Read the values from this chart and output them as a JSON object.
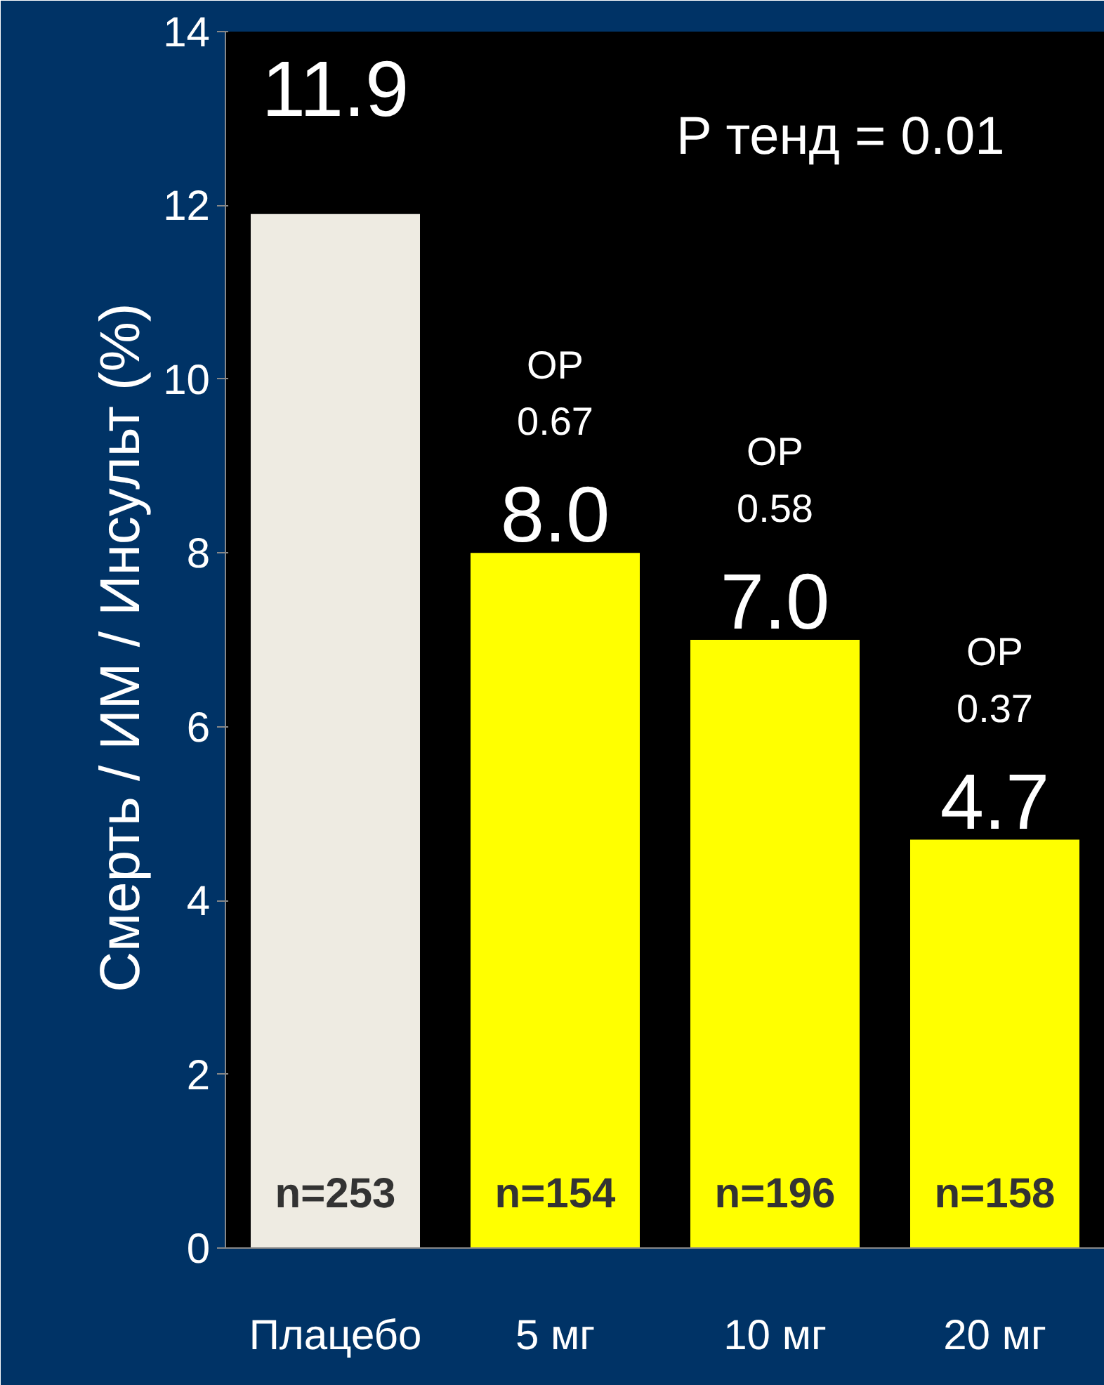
{
  "chart_data": {
    "type": "bar",
    "ylabel": "Смерть / ИМ / Инсульт  (%)",
    "categories": [
      "Плацебо",
      "5 мг",
      "10 мг",
      "20 мг"
    ],
    "values": [
      11.9,
      8.0,
      7.0,
      4.7
    ],
    "colors": [
      "#eeebe2",
      "#ffff00",
      "#ffff00",
      "#ffff00"
    ],
    "value_labels": [
      "11.9",
      "8.0",
      "7.0",
      "4.7"
    ],
    "ylim": [
      0,
      14
    ],
    "yticks": [
      0,
      2,
      4,
      6,
      8,
      10,
      12,
      14
    ],
    "grid": false,
    "annotations": [
      "P тенд = 0.01",
      {
        "text": "ОР\n0.67",
        "x": "5 мг",
        "y": 8.0
      },
      {
        "text": "ОР\n0.58",
        "x": "10 мг",
        "y": 7.0
      },
      {
        "text": "ОР\n0.37",
        "x": "20 мг",
        "y": 4.7
      },
      {
        "text": "n=253",
        "x": "Плацебо",
        "y": 0
      },
      {
        "text": "n=154",
        "x": "5 мг",
        "y": 0
      },
      {
        "text": "n=196",
        "x": "10 мг",
        "y": 0
      },
      {
        "text": "n=158",
        "x": "20 мг",
        "y": 0
      }
    ]
  }
}
